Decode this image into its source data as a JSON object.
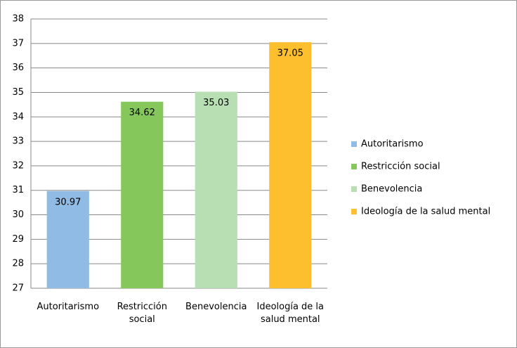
{
  "chart_data": {
    "type": "bar",
    "categories": [
      "Autoritarismo",
      "Restricción social",
      "Benevolencia",
      "Ideología de la salud mental"
    ],
    "values": [
      30.97,
      34.62,
      35.03,
      37.05
    ],
    "colors": [
      "#8fbbe4",
      "#86c75c",
      "#b8deb3",
      "#fdbf2d"
    ],
    "ylim": [
      27,
      38
    ],
    "yticks": [
      27,
      28,
      29,
      30,
      31,
      32,
      33,
      34,
      35,
      36,
      37,
      38
    ],
    "grid": true,
    "legend": "right"
  }
}
